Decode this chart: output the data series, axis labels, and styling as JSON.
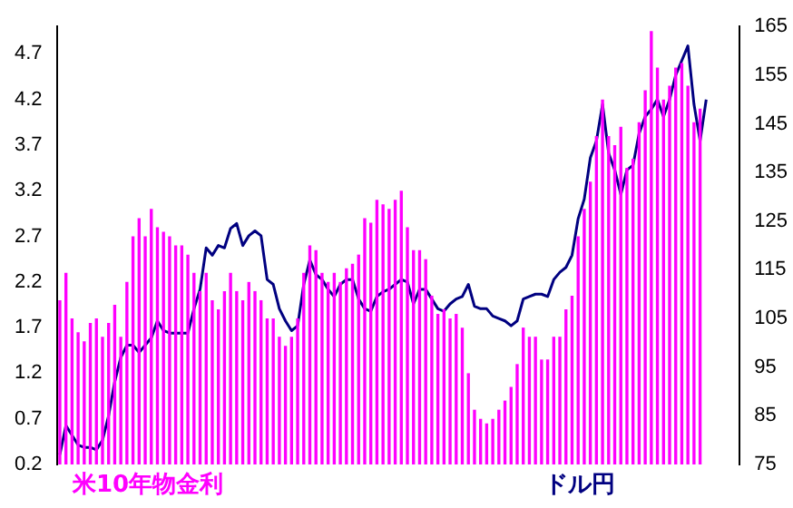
{
  "chart_data": {
    "type": "bar",
    "categories": [
      null,
      null,
      null,
      null,
      null,
      null,
      null,
      null,
      null,
      null,
      null,
      null,
      null,
      null,
      null,
      null,
      null,
      null,
      null,
      null,
      null,
      null,
      null,
      null,
      null,
      null,
      null,
      null,
      null,
      null,
      null,
      null,
      null,
      null,
      null,
      null,
      null,
      null,
      null,
      null,
      null,
      null,
      null,
      null,
      null,
      null,
      null,
      null,
      null,
      null,
      null,
      null,
      null,
      null,
      null,
      null,
      null,
      null,
      null,
      null,
      null,
      null,
      null,
      null,
      null,
      null,
      null,
      null,
      null,
      null,
      null,
      null,
      null,
      null,
      null,
      null,
      null,
      null,
      null,
      null,
      null,
      null,
      null,
      null,
      null,
      null,
      null,
      null,
      null,
      null,
      null,
      null,
      null,
      null,
      null,
      null,
      null,
      null,
      null,
      null,
      null,
      null,
      null,
      null,
      null,
      null,
      null,
      null,
      null,
      null,
      null,
      null
    ],
    "series": [
      {
        "name": "米10年物金利",
        "color": "#ff00ff",
        "values": [
          2.0,
          2.3,
          1.8,
          1.65,
          1.55,
          1.75,
          1.8,
          1.6,
          1.75,
          1.95,
          1.6,
          2.2,
          2.7,
          2.9,
          2.7,
          3.0,
          2.8,
          2.75,
          2.7,
          2.6,
          2.6,
          2.5,
          2.3,
          2.1,
          2.3,
          2.0,
          1.9,
          2.1,
          2.3,
          2.1,
          2.0,
          2.2,
          2.1,
          2.0,
          1.8,
          1.8,
          1.6,
          1.5,
          1.6,
          1.8,
          2.3,
          2.6,
          2.55,
          2.3,
          2.2,
          2.3,
          2.2,
          2.35,
          2.4,
          2.5,
          2.9,
          2.85,
          3.1,
          3.05,
          3.0,
          3.1,
          3.2,
          2.8,
          2.55,
          2.55,
          2.45,
          2.05,
          1.85,
          1.9,
          1.8,
          1.85,
          1.7,
          1.2,
          0.8,
          0.7,
          0.65,
          0.7,
          0.8,
          0.9,
          1.05,
          1.3,
          1.7,
          1.6,
          1.6,
          1.35,
          1.35,
          1.6,
          1.6,
          1.9,
          2.05,
          2.7,
          3.0,
          3.3,
          3.8,
          4.2,
          3.8,
          3.7,
          3.9,
          3.45,
          3.55,
          3.95,
          4.3,
          4.95,
          4.55,
          4.2,
          4.35,
          4.55,
          4.6,
          4.35,
          3.95,
          4.1,
          null,
          null,
          null,
          null,
          null,
          null
        ]
      },
      {
        "name": "ドル円",
        "type": "line",
        "axis": "y2",
        "color": "#000080",
        "values": [
          77,
          83,
          81,
          79,
          78.5,
          78.5,
          78,
          80,
          85,
          92,
          97,
          99.5,
          99.5,
          98,
          99.5,
          101,
          104.5,
          102.5,
          102,
          102,
          102,
          102,
          107,
          111,
          119.5,
          118,
          120,
          119.5,
          123.5,
          124.5,
          120,
          122,
          123,
          122,
          113,
          112,
          107,
          104.5,
          102.5,
          103.5,
          112,
          117,
          114,
          113,
          111,
          109.5,
          112,
          113,
          113,
          109,
          107,
          106.5,
          109.5,
          110.5,
          111,
          112,
          113,
          112.5,
          108,
          111,
          111,
          109,
          107,
          106.5,
          108,
          109,
          109.5,
          112,
          107.5,
          107,
          107,
          105.5,
          105,
          104.5,
          103.5,
          104.5,
          109,
          109.5,
          110,
          110,
          109.5,
          113,
          114.5,
          115.5,
          118,
          125.5,
          129.5,
          138,
          141.5,
          149,
          139,
          135.5,
          130.5,
          135.5,
          136.5,
          143,
          146.5,
          148,
          150,
          146.5,
          150,
          155,
          158,
          161,
          149,
          141.5,
          150,
          null,
          null,
          null,
          null,
          null
        ]
      }
    ],
    "ylim": [
      0.2,
      5.0
    ],
    "yticks": [
      0.2,
      0.7,
      1.2,
      1.7,
      2.2,
      2.7,
      3.2,
      3.7,
      4.2,
      4.7
    ],
    "y2lim": [
      75,
      165
    ],
    "y2ticks": [
      75,
      85,
      95,
      105,
      115,
      125,
      135,
      145,
      155,
      165
    ],
    "grid": false,
    "legend": "bottom",
    "tick_labels": "y"
  }
}
